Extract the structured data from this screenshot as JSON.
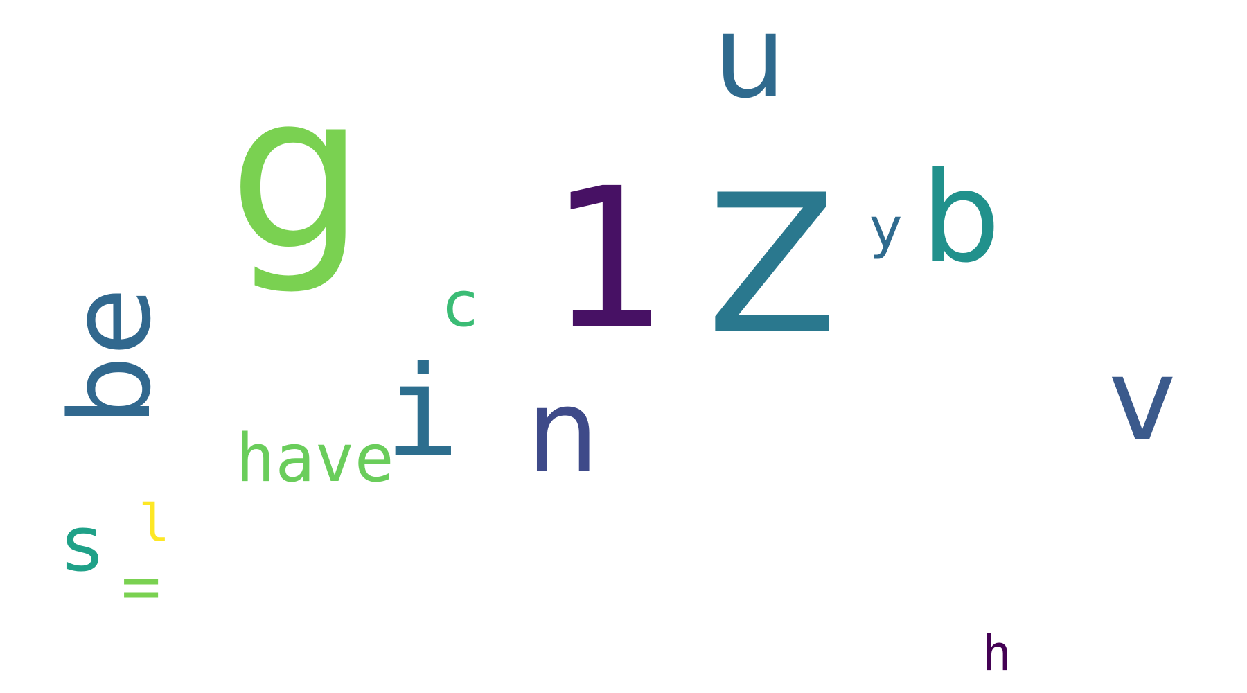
{
  "words": [
    {
      "text": "g",
      "color": "#7AD151"
    },
    {
      "text": "1",
      "color": "#471164"
    },
    {
      "text": "Z",
      "color": "#2A788E"
    },
    {
      "text": "u",
      "color": "#2F6A8E"
    },
    {
      "text": "b",
      "color": "#21918C"
    },
    {
      "text": "y",
      "color": "#2F6A8E"
    },
    {
      "text": "be",
      "color": "#31688E"
    },
    {
      "text": "c",
      "color": "#3BBC75"
    },
    {
      "text": "i",
      "color": "#2D6E8E"
    },
    {
      "text": "n",
      "color": "#3E4A89"
    },
    {
      "text": "v",
      "color": "#3B5A8C"
    },
    {
      "text": "have",
      "color": "#6ACD5B"
    },
    {
      "text": "s",
      "color": "#1FA188"
    },
    {
      "text": "l",
      "color": "#FDE725"
    },
    {
      "text": "=",
      "color": "#7AD151"
    },
    {
      "text": "h",
      "color": "#440154"
    }
  ]
}
